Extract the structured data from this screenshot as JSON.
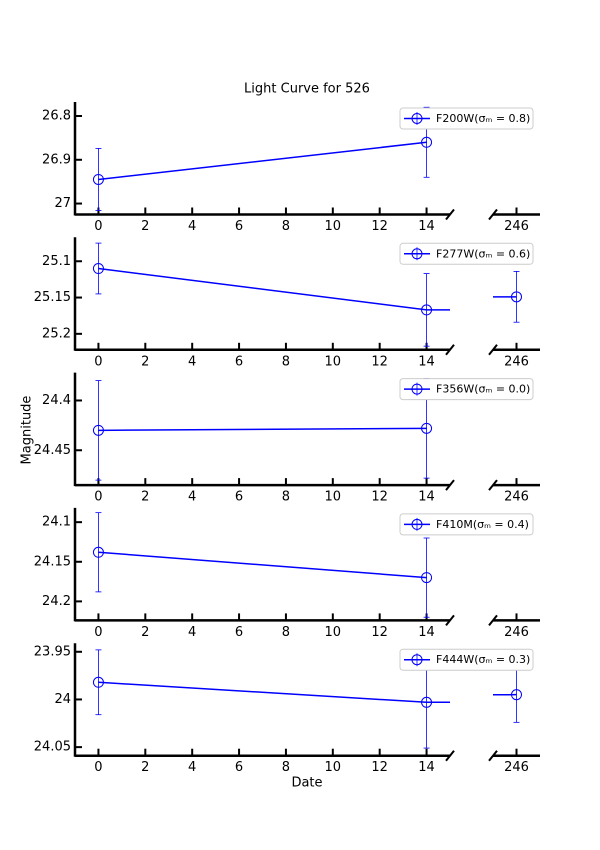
{
  "title": "Light Curve for 526",
  "x_label": "Date",
  "y_label": "Magnitude",
  "chart_data": [
    {
      "type": "errorbar",
      "x": [
        0,
        14,
        246
      ],
      "xlim": [
        [
          -1,
          15
        ],
        [
          245,
          247
        ]
      ],
      "xticks": [
        0,
        2,
        4,
        6,
        8,
        10,
        12,
        14,
        246
      ],
      "ylim": [
        27.025,
        26.768
      ],
      "yticks": [
        26.8,
        26.9,
        27.0
      ],
      "y_inverted": true,
      "legend": "upper right",
      "series": [
        {
          "name": "F200W(σₘ = 0.8)",
          "color": "#0000ff",
          "values": [
            26.945,
            26.86,
            null
          ],
          "errors": [
            0.071,
            0.08,
            null
          ]
        }
      ]
    },
    {
      "type": "errorbar",
      "x": [
        0,
        14,
        246
      ],
      "xlim": [
        [
          -1,
          15
        ],
        [
          245,
          247
        ]
      ],
      "xticks": [
        0,
        2,
        4,
        6,
        8,
        10,
        12,
        14,
        246
      ],
      "ylim": [
        25.222,
        25.067
      ],
      "yticks": [
        25.1,
        25.15,
        25.2
      ],
      "y_inverted": true,
      "legend": "upper right",
      "series": [
        {
          "name": "F277W(σₘ = 0.6)",
          "color": "#0000ff",
          "values": [
            25.11,
            25.167,
            25.149
          ],
          "errors": [
            0.035,
            0.05,
            0.035
          ]
        }
      ]
    },
    {
      "type": "errorbar",
      "x": [
        0,
        14,
        246
      ],
      "xlim": [
        [
          -1,
          15
        ],
        [
          245,
          247
        ]
      ],
      "xticks": [
        0,
        2,
        4,
        6,
        8,
        10,
        12,
        14,
        246
      ],
      "ylim": [
        24.485,
        24.372
      ],
      "yticks": [
        24.4,
        24.45
      ],
      "y_inverted": true,
      "legend": "upper right",
      "series": [
        {
          "name": "F356W(σₘ = 0.0)",
          "color": "#0000ff",
          "values": [
            24.43,
            24.428,
            null
          ],
          "errors": [
            0.05,
            0.05,
            null
          ]
        }
      ]
    },
    {
      "type": "errorbar",
      "x": [
        0,
        14,
        246
      ],
      "xlim": [
        [
          -1,
          15
        ],
        [
          245,
          247
        ]
      ],
      "xticks": [
        0,
        2,
        4,
        6,
        8,
        10,
        12,
        14,
        246
      ],
      "ylim": [
        24.224,
        24.082
      ],
      "yticks": [
        24.1,
        24.15,
        24.2
      ],
      "y_inverted": true,
      "legend": "upper right",
      "series": [
        {
          "name": "F410M(σₘ = 0.4)",
          "color": "#0000ff",
          "values": [
            24.138,
            24.17,
            null
          ],
          "errors": [
            0.05,
            0.05,
            null
          ]
        }
      ]
    },
    {
      "type": "errorbar",
      "x": [
        0,
        14,
        246
      ],
      "xlim": [
        [
          -1,
          15
        ],
        [
          245,
          247
        ]
      ],
      "xticks": [
        0,
        2,
        4,
        6,
        8,
        10,
        12,
        14,
        246
      ],
      "ylim": [
        24.059,
        23.941
      ],
      "yticks": [
        23.95,
        24.0,
        24.05
      ],
      "y_inverted": true,
      "legend": "upper right",
      "series": [
        {
          "name": "F444W(σₘ = 0.3)",
          "color": "#0000ff",
          "values": [
            23.982,
            24.003,
            23.995
          ],
          "errors": [
            0.034,
            0.048,
            0.029
          ]
        }
      ]
    }
  ]
}
